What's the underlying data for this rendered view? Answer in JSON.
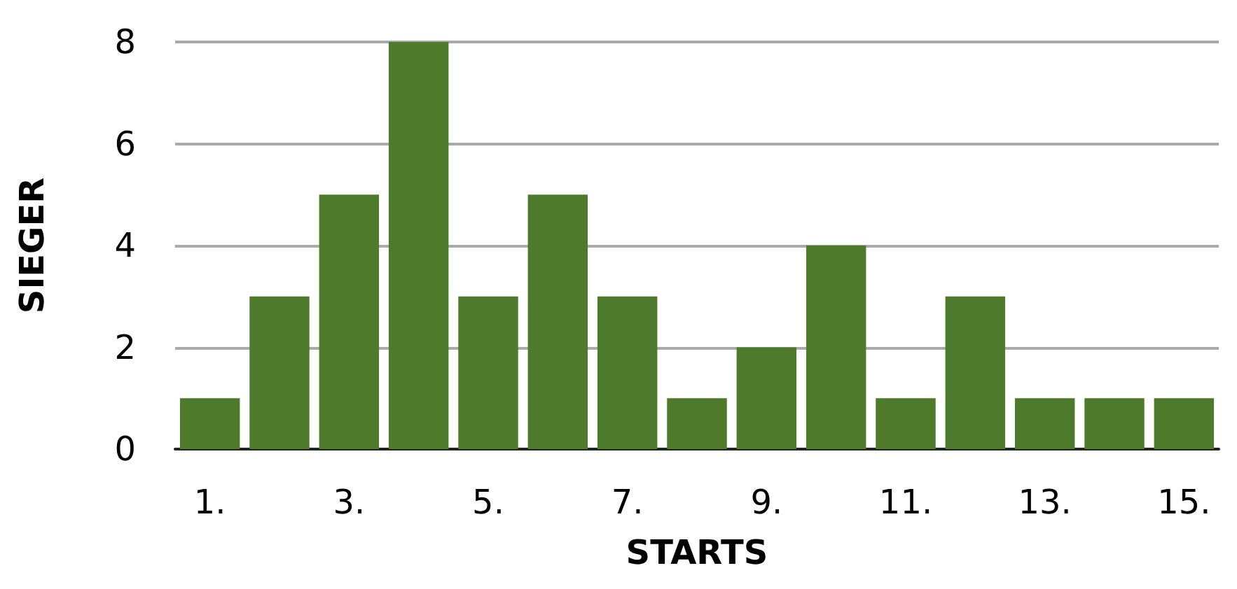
{
  "chart_data": {
    "type": "bar",
    "xlabel": "STARTS",
    "ylabel": "SIEGER",
    "categories": [
      "1.",
      null,
      "3.",
      null,
      "5.",
      null,
      "7.",
      null,
      "9.",
      null,
      "11.",
      null,
      "13.",
      null,
      "15."
    ],
    "values": [
      1,
      3,
      5,
      8,
      3,
      5,
      3,
      1,
      2,
      4,
      1,
      3,
      1,
      1,
      1
    ],
    "color": "#4e7a2c",
    "grid": "y",
    "ylim": [
      0,
      8
    ],
    "yticks": [
      0,
      2,
      4,
      6,
      8
    ]
  }
}
